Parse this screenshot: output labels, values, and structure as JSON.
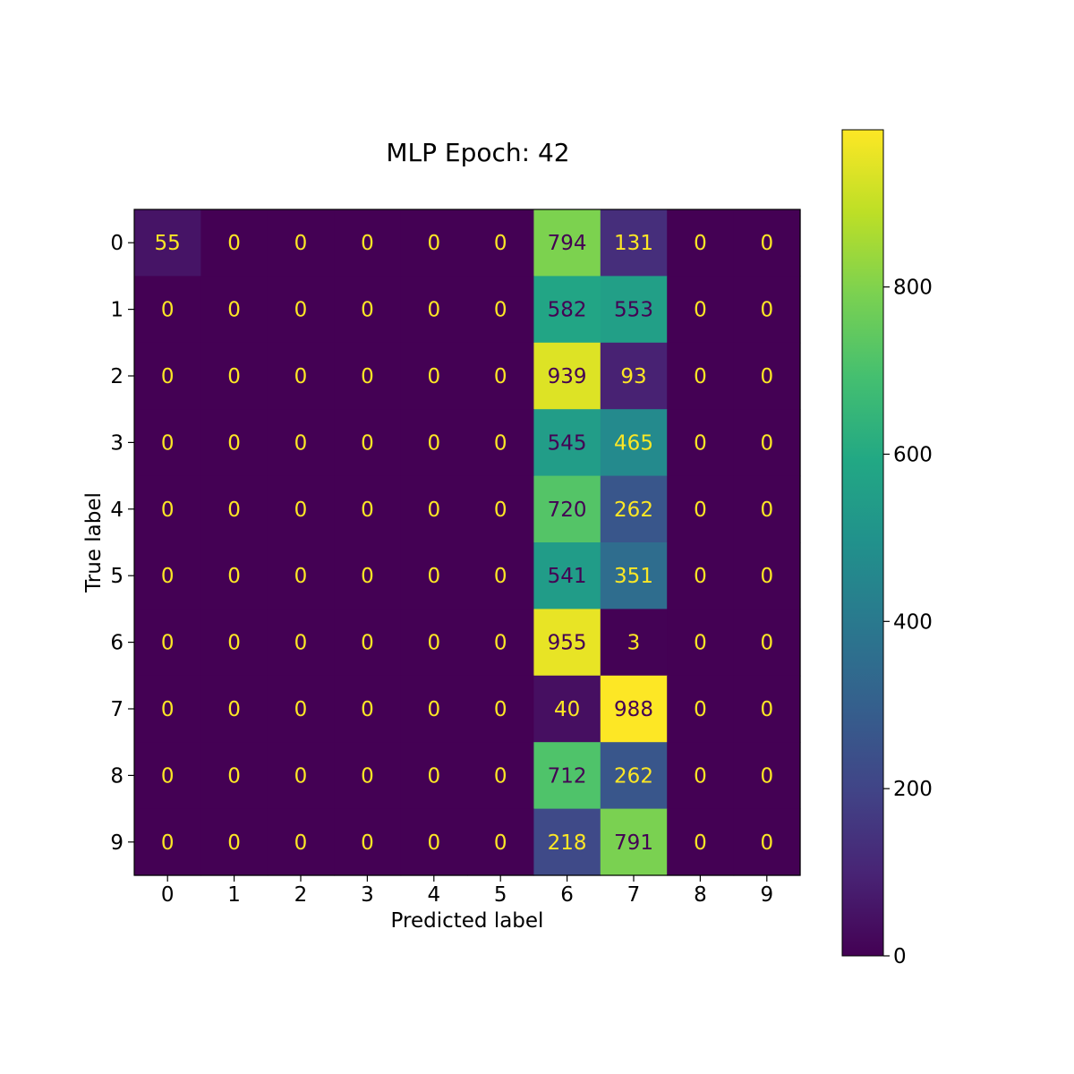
{
  "chart_data": {
    "type": "heatmap",
    "title": "MLP Epoch: 42",
    "xlabel": "Predicted label",
    "ylabel": "True label",
    "x_categories": [
      "0",
      "1",
      "2",
      "3",
      "4",
      "5",
      "6",
      "7",
      "8",
      "9"
    ],
    "y_categories": [
      "0",
      "1",
      "2",
      "3",
      "4",
      "5",
      "6",
      "7",
      "8",
      "9"
    ],
    "values": [
      [
        55,
        0,
        0,
        0,
        0,
        0,
        794,
        131,
        0,
        0
      ],
      [
        0,
        0,
        0,
        0,
        0,
        0,
        582,
        553,
        0,
        0
      ],
      [
        0,
        0,
        0,
        0,
        0,
        0,
        939,
        93,
        0,
        0
      ],
      [
        0,
        0,
        0,
        0,
        0,
        0,
        545,
        465,
        0,
        0
      ],
      [
        0,
        0,
        0,
        0,
        0,
        0,
        720,
        262,
        0,
        0
      ],
      [
        0,
        0,
        0,
        0,
        0,
        0,
        541,
        351,
        0,
        0
      ],
      [
        0,
        0,
        0,
        0,
        0,
        0,
        955,
        3,
        0,
        0
      ],
      [
        0,
        0,
        0,
        0,
        0,
        0,
        40,
        988,
        0,
        0
      ],
      [
        0,
        0,
        0,
        0,
        0,
        0,
        712,
        262,
        0,
        0
      ],
      [
        0,
        0,
        0,
        0,
        0,
        0,
        218,
        791,
        0,
        0
      ]
    ],
    "colormap": "viridis",
    "colorbar": {
      "vmin": 0,
      "vmax": 988,
      "ticks": [
        0,
        200,
        400,
        600,
        800
      ],
      "tick_labels": [
        "0",
        "200",
        "400",
        "600",
        "800"
      ],
      "placement": "right"
    },
    "grid": false
  }
}
